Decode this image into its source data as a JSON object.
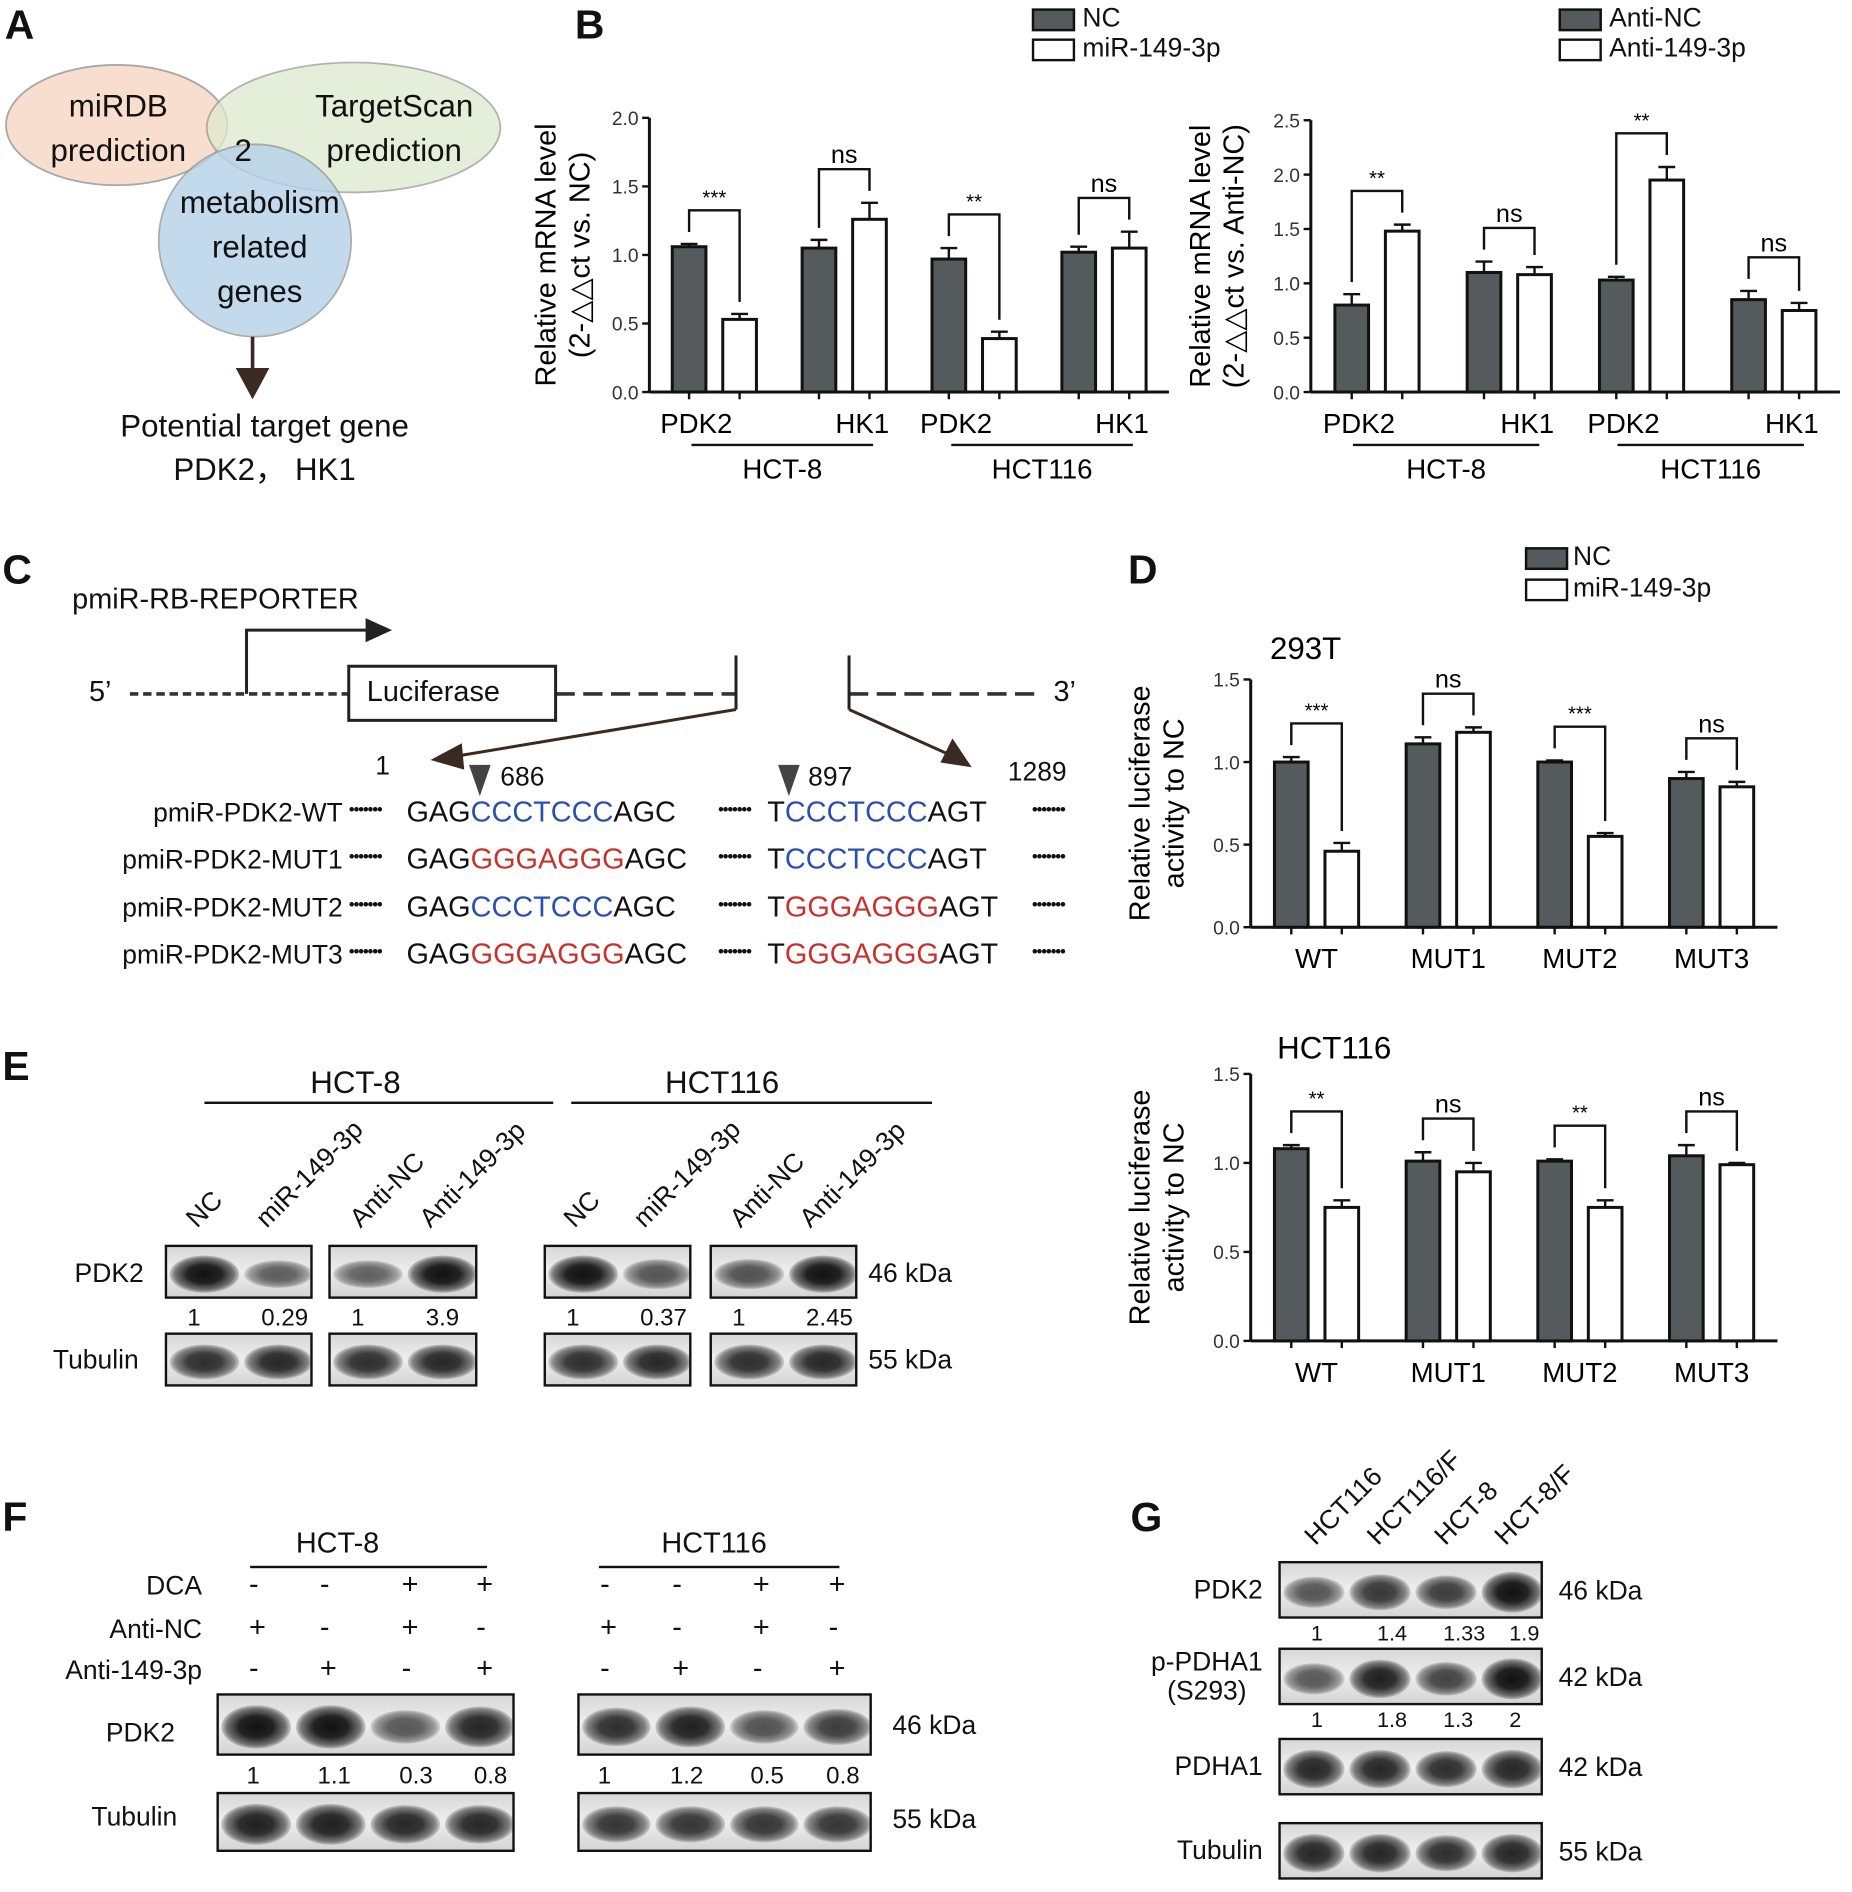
{
  "panels": {
    "A": "A",
    "B": "B",
    "C": "C",
    "D": "D",
    "E": "E",
    "F": "F",
    "G": "G"
  },
  "venn": {
    "set1": [
      "miRDB",
      "prediction"
    ],
    "set2": [
      "TargetScan",
      "prediction"
    ],
    "set3": [
      "metabolism",
      "related",
      "genes"
    ],
    "overlap": "2",
    "result": [
      "Potential target gene",
      "PDK2， HK1"
    ],
    "colors": {
      "set1": "#f6d9c6",
      "set2": "#dde9cc",
      "set3": "#b5d0e8"
    }
  },
  "legends": {
    "B_left": [
      "NC",
      "miR-149-3p"
    ],
    "B_right": [
      "Anti-NC",
      "Anti-149-3p"
    ],
    "D": [
      "NC",
      "miR-149-3p"
    ]
  },
  "chart_data": [
    {
      "id": "B1",
      "type": "bar",
      "title": "",
      "ylabel": [
        "Relative mRNA level",
        "(2-△△ct vs. NC)"
      ],
      "ylim": [
        0,
        2.0
      ],
      "yticks": [
        "0.0",
        "0.5",
        "1.0",
        "1.5",
        "2.0"
      ],
      "categories": [
        "PDK2",
        "HK1",
        "PDK2",
        "HK1"
      ],
      "groups": [
        "HCT-8",
        "HCT116"
      ],
      "series": [
        {
          "name": "NC",
          "values": [
            1.06,
            1.05,
            0.97,
            1.02
          ],
          "err": [
            0.02,
            0.06,
            0.08,
            0.04
          ]
        },
        {
          "name": "miR-149-3p",
          "values": [
            0.53,
            1.26,
            0.39,
            1.05
          ],
          "err": [
            0.04,
            0.12,
            0.05,
            0.12
          ]
        }
      ],
      "significance": [
        "***",
        "ns",
        "**",
        "ns"
      ],
      "colors": [
        "#555a5c",
        "#ffffff"
      ]
    },
    {
      "id": "B2",
      "type": "bar",
      "title": "",
      "ylabel": [
        "Relative mRNA level",
        "(2-△△ct vs. Anti-NC)"
      ],
      "ylim": [
        0,
        2.5
      ],
      "yticks": [
        "0.0",
        "0.5",
        "1.0",
        "1.5",
        "2.0",
        "2.5"
      ],
      "categories": [
        "PDK2",
        "HK1",
        "PDK2",
        "HK1"
      ],
      "groups": [
        "HCT-8",
        "HCT116"
      ],
      "series": [
        {
          "name": "Anti-NC",
          "values": [
            0.8,
            1.1,
            1.03,
            0.85
          ],
          "err": [
            0.1,
            0.1,
            0.03,
            0.08
          ]
        },
        {
          "name": "Anti-149-3p",
          "values": [
            1.48,
            1.08,
            1.95,
            0.75
          ],
          "err": [
            0.06,
            0.07,
            0.12,
            0.07
          ]
        }
      ],
      "significance": [
        "**",
        "ns",
        "**",
        "ns"
      ],
      "colors": [
        "#555a5c",
        "#ffffff"
      ]
    },
    {
      "id": "D1",
      "type": "bar",
      "title": "293T",
      "ylabel": [
        "Relative luciferase",
        "activity to NC"
      ],
      "ylim": [
        0,
        1.5
      ],
      "yticks": [
        "0.0",
        "0.5",
        "1.0",
        "1.5"
      ],
      "categories": [
        "WT",
        "MUT1",
        "MUT2",
        "MUT3"
      ],
      "groups": [],
      "series": [
        {
          "name": "NC",
          "values": [
            1.0,
            1.11,
            1.0,
            0.9
          ],
          "err": [
            0.03,
            0.04,
            0.01,
            0.04
          ]
        },
        {
          "name": "miR-149-3p",
          "values": [
            0.46,
            1.18,
            0.55,
            0.85
          ],
          "err": [
            0.05,
            0.03,
            0.02,
            0.03
          ]
        }
      ],
      "significance": [
        "***",
        "ns",
        "***",
        "ns"
      ],
      "colors": [
        "#555a5c",
        "#ffffff"
      ]
    },
    {
      "id": "D2",
      "type": "bar",
      "title": "HCT116",
      "ylabel": [
        "Relative luciferase",
        "activity to NC"
      ],
      "ylim": [
        0,
        1.5
      ],
      "yticks": [
        "0.0",
        "0.5",
        "1.0",
        "1.5"
      ],
      "categories": [
        "WT",
        "MUT1",
        "MUT2",
        "MUT3"
      ],
      "groups": [],
      "series": [
        {
          "name": "NC",
          "values": [
            1.08,
            1.01,
            1.01,
            1.04
          ],
          "err": [
            0.02,
            0.05,
            0.01,
            0.06
          ]
        },
        {
          "name": "miR-149-3p",
          "values": [
            0.75,
            0.95,
            0.75,
            0.99
          ],
          "err": [
            0.04,
            0.05,
            0.04,
            0.01
          ]
        }
      ],
      "significance": [
        "**",
        "ns",
        "**",
        "ns"
      ],
      "colors": [
        "#555a5c",
        "#ffffff"
      ]
    }
  ],
  "construct": {
    "name": "pmiR-RB-REPORTER",
    "five": "5’",
    "three": "3’",
    "gene": "Luciferase",
    "pos_start": "1",
    "pos_a": "686",
    "pos_b": "897",
    "pos_end": "1289",
    "rows": [
      {
        "label": "pmiR-PDK2-WT",
        "a_pre": "GAG",
        "a_seq": "CCCTCCC",
        "a_type": "wt",
        "a_post": "AGC",
        "b_pre": "T",
        "b_seq": "CCCTCCC",
        "b_type": "wt",
        "b_post": "AGT"
      },
      {
        "label": "pmiR-PDK2-MUT1",
        "a_pre": "GAG",
        "a_seq": "GGGAGGG",
        "a_type": "mut",
        "a_post": "AGC",
        "b_pre": "T",
        "b_seq": "CCCTCCC",
        "b_type": "wt",
        "b_post": "AGT"
      },
      {
        "label": "pmiR-PDK2-MUT2",
        "a_pre": "GAG",
        "a_seq": "CCCTCCC",
        "a_type": "wt",
        "a_post": "AGC",
        "b_pre": "T",
        "b_seq": "GGGAGGG",
        "b_type": "mut",
        "b_post": "AGT"
      },
      {
        "label": "pmiR-PDK2-MUT3",
        "a_pre": "GAG",
        "a_seq": "GGGAGGG",
        "a_type": "mut",
        "a_post": "AGC",
        "b_pre": "T",
        "b_seq": "GGGAGGG",
        "b_type": "mut",
        "b_post": "AGT"
      }
    ],
    "colors": {
      "wt": "#2b4fb0",
      "mut": "#c8322d"
    }
  },
  "blotE": {
    "groups": [
      "HCT-8",
      "HCT116"
    ],
    "lanes": [
      "NC",
      "miR-149-3p",
      "Anti-NC",
      "Anti-149-3p",
      "NC",
      "miR-149-3p",
      "Anti-NC",
      "Anti-149-3p"
    ],
    "rows": [
      "PDK2",
      "Tubulin"
    ],
    "quant": [
      "1",
      "0.29",
      "1",
      "3.9",
      "1",
      "0.37",
      "1",
      "2.45"
    ],
    "kda": [
      "46 kDa",
      "55 kDa"
    ]
  },
  "blotF": {
    "groups": [
      "HCT-8",
      "HCT116"
    ],
    "conditions": [
      {
        "label": "DCA",
        "signs": [
          "-",
          "-",
          "+",
          "+",
          "-",
          "-",
          "+",
          "+"
        ]
      },
      {
        "label": "Anti-NC",
        "signs": [
          "+",
          "-",
          "+",
          "-",
          "+",
          "-",
          "+",
          "-"
        ]
      },
      {
        "label": "Anti-149-3p",
        "signs": [
          "-",
          "+",
          "-",
          "+",
          "-",
          "+",
          "-",
          "+"
        ]
      }
    ],
    "rows": [
      "PDK2",
      "Tubulin"
    ],
    "quant": [
      "1",
      "1.1",
      "0.3",
      "0.8",
      "1",
      "1.2",
      "0.5",
      "0.8"
    ],
    "kda": [
      "46 kDa",
      "55 kDa"
    ]
  },
  "blotG": {
    "lanes": [
      "HCT116",
      "HCT116/F",
      "HCT-8",
      "HCT-8/F"
    ],
    "rows": [
      {
        "label": [
          "PDK2"
        ],
        "kda": "46 kDa",
        "quant": [
          "1",
          "1.4",
          "1.33",
          "1.9"
        ]
      },
      {
        "label": [
          "p-PDHA1",
          "(S293)"
        ],
        "kda": "42 kDa",
        "quant": [
          "1",
          "1.8",
          "1.3",
          "2"
        ]
      },
      {
        "label": [
          "PDHA1"
        ],
        "kda": "42 kDa",
        "quant": []
      },
      {
        "label": [
          "Tubulin"
        ],
        "kda": "55 kDa",
        "quant": []
      }
    ]
  }
}
